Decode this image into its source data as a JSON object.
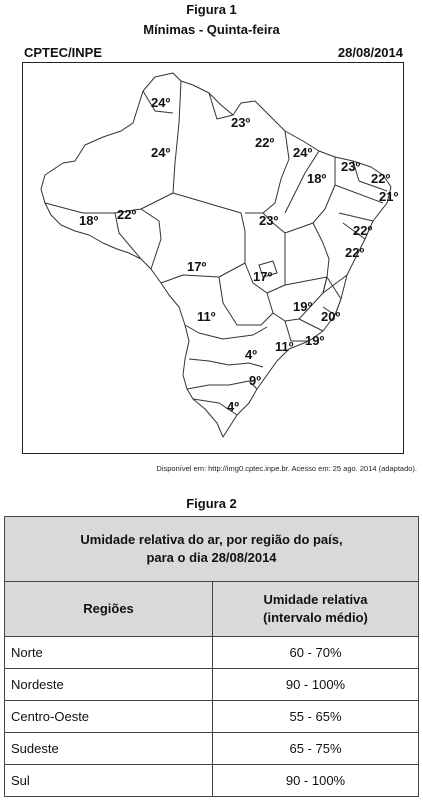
{
  "figure1": {
    "label": "Figura 1",
    "subtitle": "Mínimas - Quinta-feira",
    "source": "CPTEC/INPE",
    "date": "28/08/2014",
    "temperatures": [
      "24º",
      "24º",
      "23º",
      "22º",
      "24º",
      "23º",
      "22º",
      "18º",
      "21º",
      "18º",
      "22º",
      "23º",
      "22º",
      "22º",
      "17º",
      "17º",
      "19º",
      "11º",
      "20º",
      "4º",
      "11º",
      "19º",
      "9º",
      "4º"
    ],
    "credit": "Disponível em: http://img0.cptec.inpe.br. Acesso em: 25 ago. 2014 (adaptado)."
  },
  "figure2": {
    "label": "Figura 2",
    "caption_line1": "Umidade relativa do ar, por região do país,",
    "caption_line2": "para o dia 28/08/2014",
    "col_region": "Regiões",
    "col_humidity_line1": "Umidade relativa",
    "col_humidity_line2": "(intervalo médio)",
    "rows": [
      {
        "region": "Norte",
        "value": "60 - 70%"
      },
      {
        "region": "Nordeste",
        "value": "90 - 100%"
      },
      {
        "region": "Centro-Oeste",
        "value": "55 - 65%"
      },
      {
        "region": "Sudeste",
        "value": "65 - 75%"
      },
      {
        "region": "Sul",
        "value": "90 - 100%"
      }
    ]
  }
}
